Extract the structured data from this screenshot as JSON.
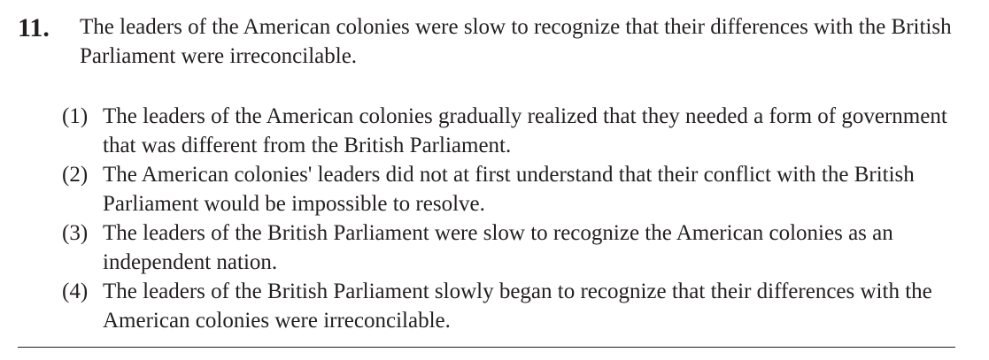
{
  "question": {
    "number": "11.",
    "stem": "The leaders of the American colonies were slow to recognize that their differences with the British Parliament were irreconcilable.",
    "options": [
      {
        "marker": "(1)",
        "text": "The leaders of the American colonies gradually realized that they needed a form of government that was different from the British Parliament."
      },
      {
        "marker": "(2)",
        "text": "The American colonies' leaders did not at first understand that their conflict with the British Parliament would be impossible to resolve."
      },
      {
        "marker": "(3)",
        "text": "The leaders of the British Parliament were slow to recognize the American colonies as an independent nation."
      },
      {
        "marker": "(4)",
        "text": "The leaders of the British Parliament slowly began to recognize that their differences with the American colonies were irreconcilable."
      }
    ]
  }
}
